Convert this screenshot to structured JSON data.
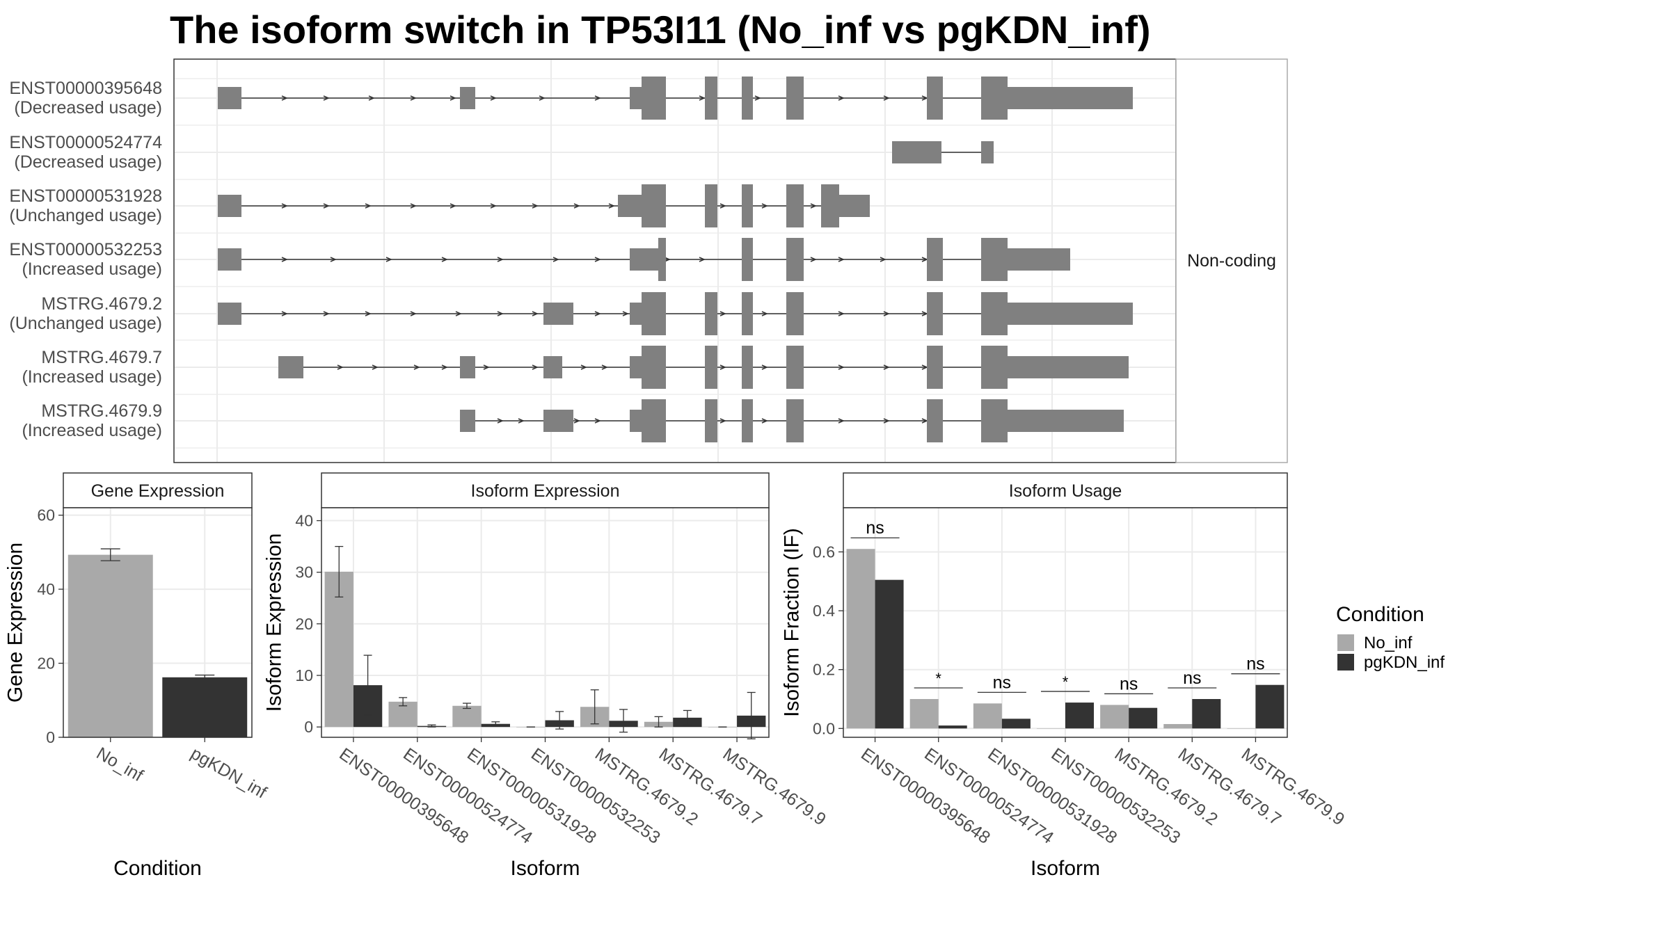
{
  "title": "The isoform switch in TP53I11 (No_inf vs pgKDN_inf)",
  "colors": {
    "no_inf": "#a9a9a9",
    "pgkdn_inf": "#333333",
    "exon": "#808080",
    "grid": "#ebebeb",
    "panel_border": "#333333",
    "strip_border": "#aaaaaa"
  },
  "transcripts": {
    "strip_label": "Non-coding",
    "items": [
      {
        "id": "ENST00000395648",
        "usage": "(Decreased usage)"
      },
      {
        "id": "ENST00000524774",
        "usage": "(Decreased usage)"
      },
      {
        "id": "ENST00000531928",
        "usage": "(Unchanged usage)"
      },
      {
        "id": "ENST00000532253",
        "usage": "(Increased usage)"
      },
      {
        "id": "MSTRG.4679.2",
        "usage": "(Unchanged usage)"
      },
      {
        "id": "MSTRG.4679.7",
        "usage": "(Increased usage)"
      },
      {
        "id": "MSTRG.4679.9",
        "usage": "(Increased usage)"
      }
    ]
  },
  "legend": {
    "title": "Condition",
    "entries": [
      {
        "label": "No_inf",
        "color": "#a9a9a9"
      },
      {
        "label": "pgKDN_inf",
        "color": "#333333"
      }
    ]
  },
  "chart_data": [
    {
      "type": "bar",
      "title": "Gene Expression",
      "xlabel": "Condition",
      "ylabel": "Gene Expression",
      "ylim": [
        0,
        62
      ],
      "yticks": [
        0,
        20,
        40,
        60
      ],
      "categories": [
        "No_inf",
        "pgKDN_inf"
      ],
      "values": [
        49.3,
        16.2
      ],
      "errors": [
        1.6,
        0.6
      ],
      "colors": [
        "#a9a9a9",
        "#333333"
      ]
    },
    {
      "type": "bar",
      "title": "Isoform Expression",
      "xlabel": "Isoform",
      "ylabel": "Isoform Expression",
      "ylim": [
        -2,
        42.5
      ],
      "yticks": [
        0,
        10,
        20,
        30,
        40
      ],
      "categories": [
        "ENST00000395648",
        "ENST00000524774",
        "ENST00000531928",
        "ENST00000532253",
        "MSTRG.4679.2",
        "MSTRG.4679.7",
        "MSTRG.4679.9"
      ],
      "series": [
        {
          "name": "No_inf",
          "values": [
            30.1,
            4.9,
            4.1,
            0.0,
            3.9,
            1.0,
            0.0
          ],
          "errors": [
            4.9,
            0.8,
            0.5,
            0.0,
            3.3,
            1.0,
            0.0
          ]
        },
        {
          "name": "pgKDN_inf",
          "values": [
            8.1,
            0.2,
            0.6,
            1.3,
            1.2,
            1.8,
            2.2
          ],
          "errors": [
            5.8,
            0.2,
            0.4,
            1.7,
            2.2,
            1.4,
            4.5
          ]
        }
      ]
    },
    {
      "type": "bar",
      "title": "Isoform Usage",
      "xlabel": "Isoform",
      "ylabel": "Isoform Fraction (IF)",
      "ylim": [
        -0.03,
        0.75
      ],
      "yticks": [
        0.0,
        0.2,
        0.4,
        0.6
      ],
      "categories": [
        "ENST00000395648",
        "ENST00000524774",
        "ENST00000531928",
        "ENST00000532253",
        "MSTRG.4679.2",
        "MSTRG.4679.7",
        "MSTRG.4679.9"
      ],
      "series": [
        {
          "name": "No_inf",
          "values": [
            0.61,
            0.1,
            0.085,
            0.0,
            0.08,
            0.015,
            0.0
          ]
        },
        {
          "name": "pgKDN_inf",
          "values": [
            0.505,
            0.01,
            0.033,
            0.088,
            0.07,
            0.1,
            0.148
          ]
        }
      ],
      "significance": [
        "ns",
        "*",
        "ns",
        "*",
        "ns",
        "ns",
        "ns"
      ]
    }
  ]
}
